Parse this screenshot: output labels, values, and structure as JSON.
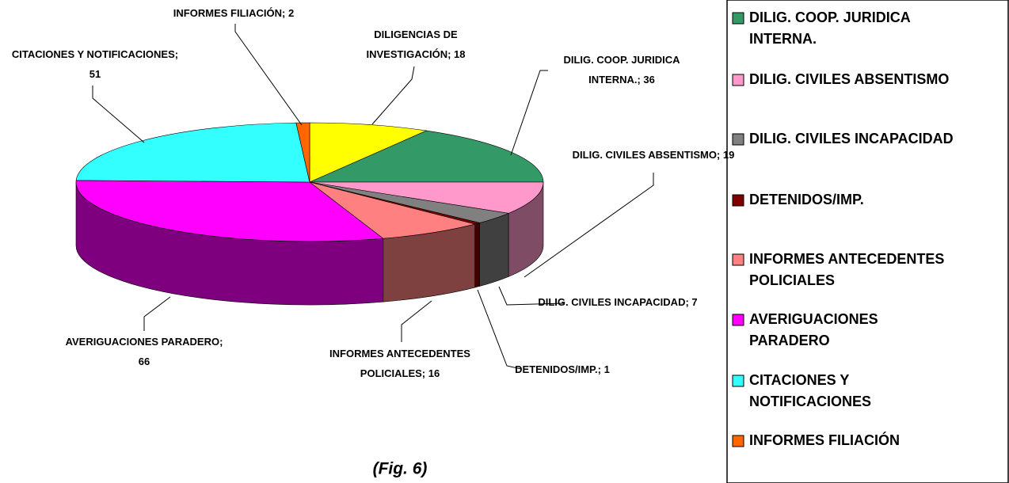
{
  "chart_data": {
    "type": "pie3d",
    "caption": "(Fig. 6)",
    "categories": [
      "DILIGENCIAS DE INVESTIGACIÓN",
      "DILIG. COOP. JURIDICA INTERNA.",
      "DILIG. CIVILES ABSENTISMO",
      "DILIG. CIVILES INCAPACIDAD",
      "DETENIDOS/IMP.",
      "INFORMES ANTECEDENTES POLICIALES",
      "AVERIGUACIONES PARADERO",
      "CITACIONES Y NOTIFICACIONES",
      "INFORMES FILIACIÓN"
    ],
    "values": [
      18,
      36,
      19,
      7,
      1,
      16,
      66,
      51,
      2
    ],
    "value_labels": [
      "DILIGENCIAS DE INVESTIGACIÓN; 18",
      "DILIG. COOP. JURIDICA INTERNA.; 36",
      "DILIG. CIVILES ABSENTISMO; 19",
      "DILIG. CIVILES INCAPACIDAD; 7",
      "DETENIDOS/IMP.; 1",
      "INFORMES ANTECEDENTES POLICIALES; 16",
      "AVERIGUACIONES PARADERO; 66",
      "CITACIONES Y NOTIFICACIONES; 51",
      "INFORMES FILIACIÓN; 2"
    ],
    "colors": [
      "#ffff00",
      "#339966",
      "#ff99cc",
      "#808080",
      "#800000",
      "#ff8080",
      "#ff00ff",
      "#33ffff",
      "#ff6600"
    ],
    "legend": "right"
  }
}
